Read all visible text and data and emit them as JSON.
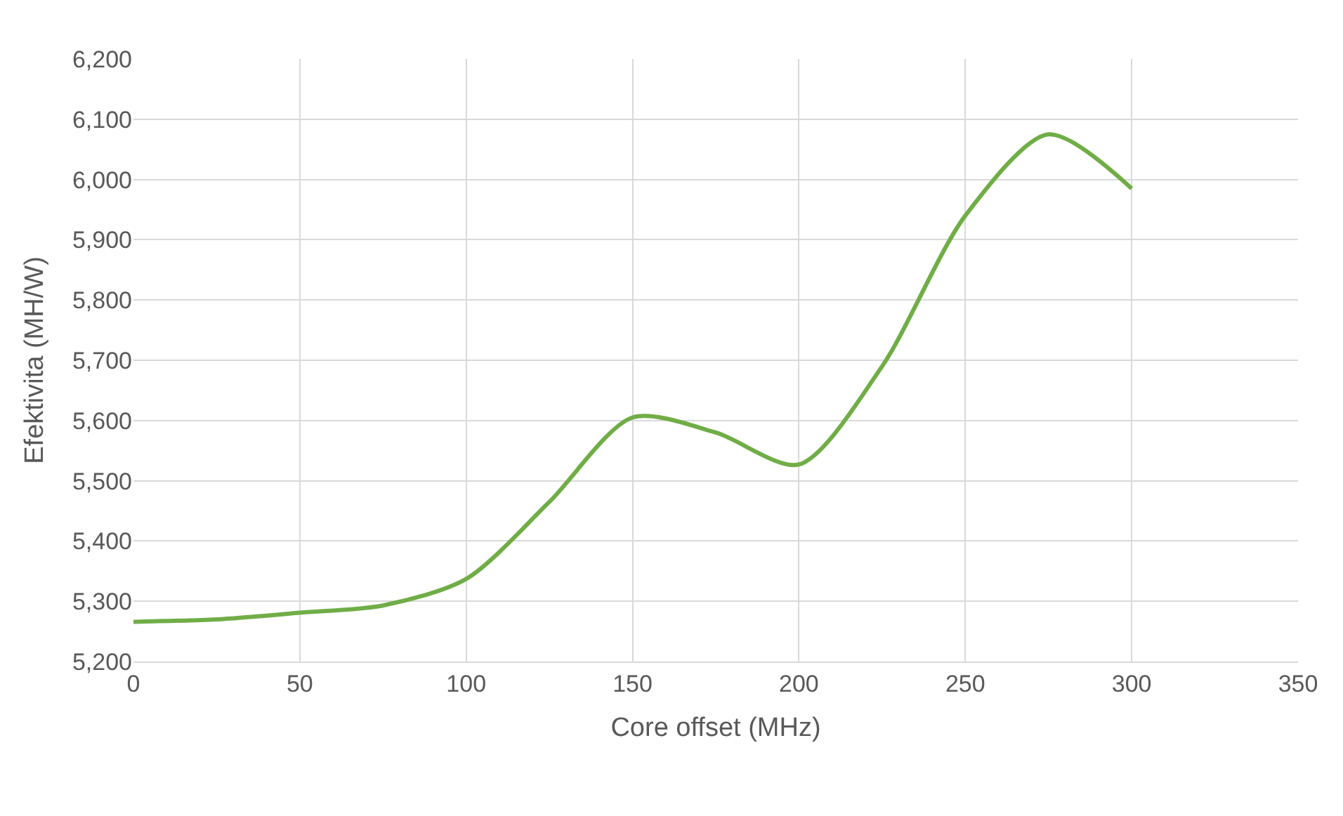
{
  "chart_data": {
    "type": "line",
    "xlabel": "Core offset (MHz)",
    "ylabel": "Efektivita (MH/W)",
    "x": [
      0,
      25,
      50,
      75,
      100,
      125,
      150,
      175,
      200,
      225,
      250,
      275,
      300
    ],
    "series": [
      {
        "color": "#70ad47",
        "values": [
          5266,
          5270,
          5281,
          5293,
          5337,
          5465,
          5605,
          5580,
          5527,
          5690,
          5940,
          6075,
          5985
        ]
      }
    ],
    "xlim": [
      0,
      350
    ],
    "xticks": [
      0,
      50,
      100,
      150,
      200,
      250,
      300,
      350
    ],
    "ylim": [
      5200,
      6200
    ],
    "yticks": [
      {
        "value": 5200,
        "label": "5,200"
      },
      {
        "value": 5300,
        "label": "5,300"
      },
      {
        "value": 5400,
        "label": "5,400"
      },
      {
        "value": 5500,
        "label": "5,500"
      },
      {
        "value": 5600,
        "label": "5,600"
      },
      {
        "value": 5700,
        "label": "5,700"
      },
      {
        "value": 5800,
        "label": "5,800"
      },
      {
        "value": 5900,
        "label": "5,900"
      },
      {
        "value": 6000,
        "label": "6,000"
      },
      {
        "value": 6100,
        "label": "6,100"
      },
      {
        "value": 6200,
        "label": "6,200"
      }
    ],
    "grid": true,
    "legend": false,
    "marker": "none",
    "line_style": "solid"
  }
}
